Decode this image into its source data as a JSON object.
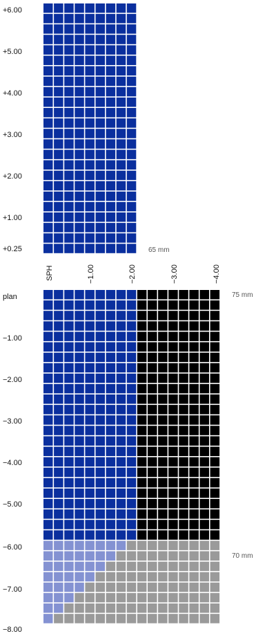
{
  "chart_data": {
    "type": "heatmap",
    "x_axis_label": "SPH",
    "x_ticks": [
      "−1.00",
      "−2.00",
      "−3.00",
      "−4.00"
    ],
    "top_y_ticks": [
      "+6.00",
      "+5.00",
      "+4.00",
      "+3.00",
      "+2.00",
      "+1.00",
      "+0.25"
    ],
    "bottom_y_ticks": [
      "plan",
      "−1.00",
      "−2.00",
      "−3.00",
      "−4.00",
      "−5.00",
      "−6.00",
      "−7.00",
      "−8.00"
    ],
    "legend": [
      {
        "label": "65 mm",
        "color": "#0a2f9e"
      },
      {
        "label": "75 mm",
        "color": "#000000"
      },
      {
        "label": "70 mm",
        "color": "#9a9a9a"
      }
    ],
    "colors": {
      "blue": "#0a2f9e",
      "black": "#000000",
      "gray": "#9a9a9a",
      "lightblue": "#8492d2",
      "grid": "#ffffff"
    },
    "top_grid": {
      "rows": 24,
      "cols": 9,
      "fill": "blue"
    },
    "bottom_grid": {
      "rows": 32,
      "cols": 17,
      "rows_blue_black": 24,
      "blue_cols_in_blue_black_rows": 9,
      "lightblue_cols_per_lower_row": [
        8,
        7,
        6,
        5,
        4,
        3,
        2,
        1
      ]
    }
  }
}
